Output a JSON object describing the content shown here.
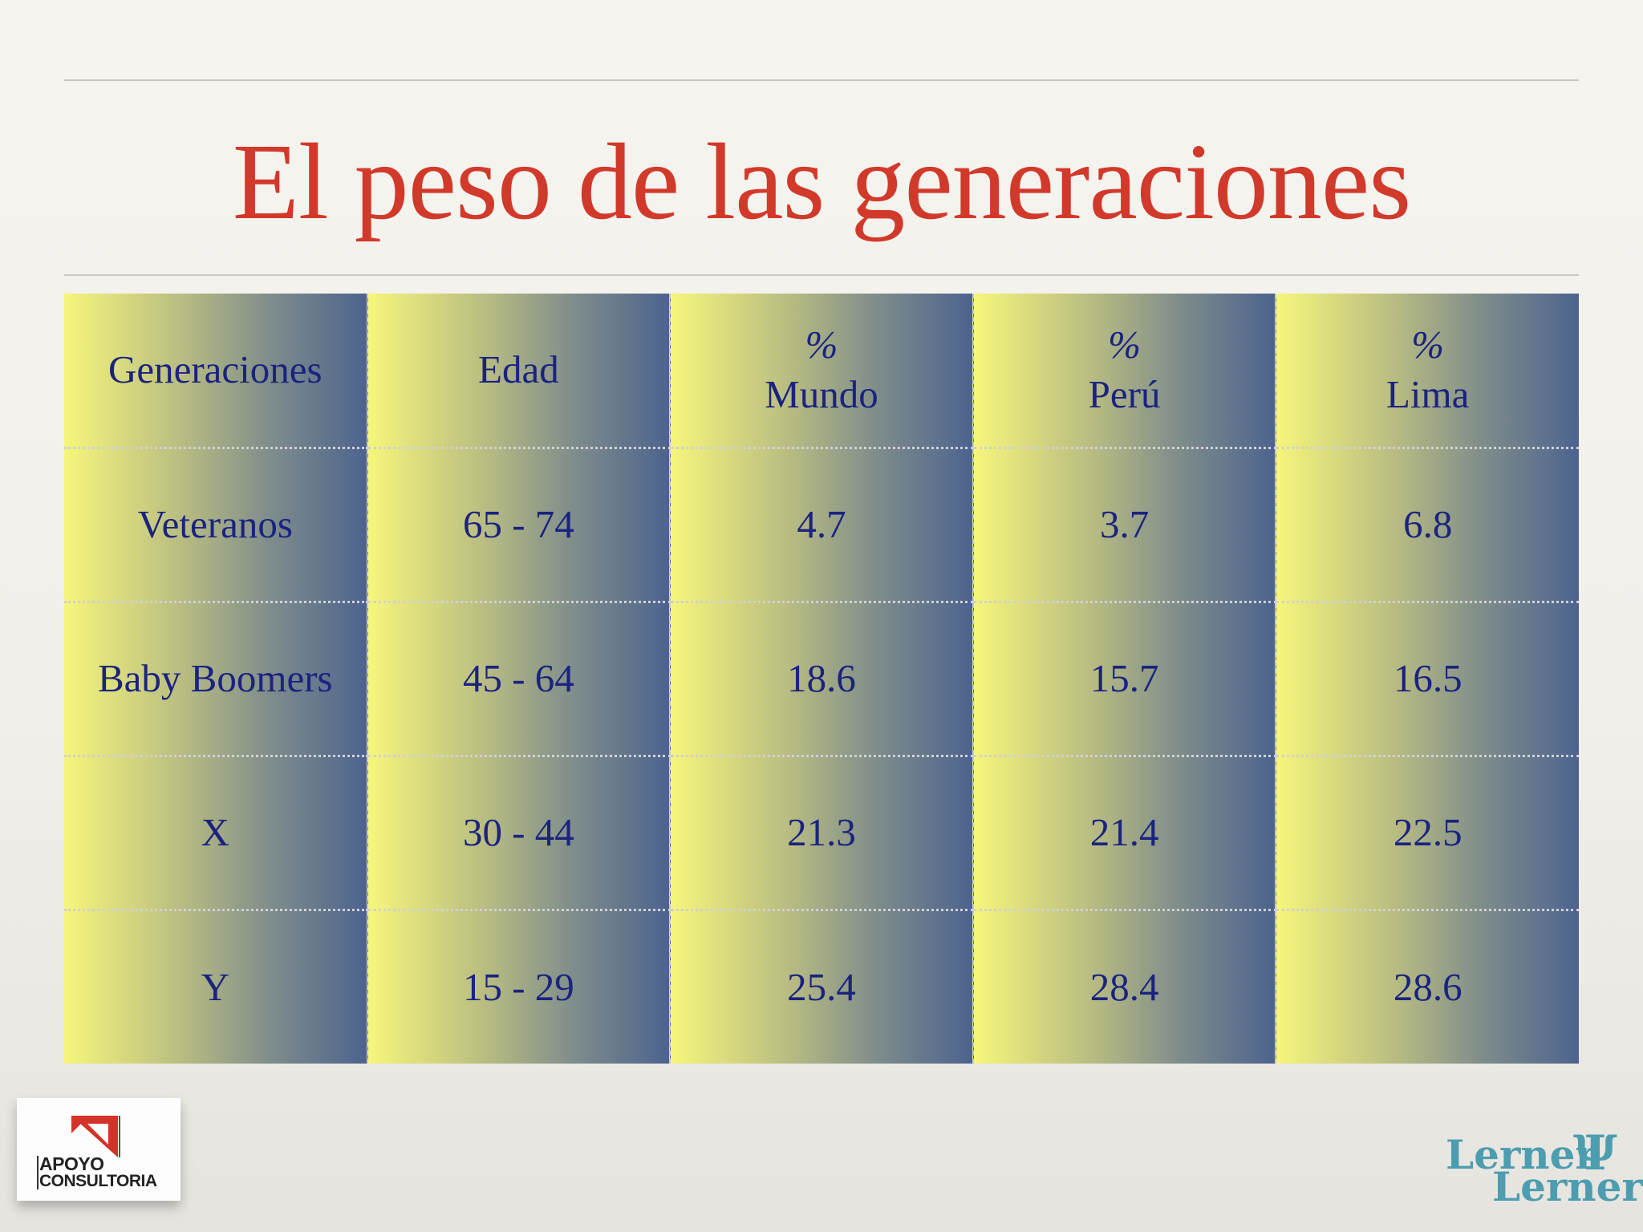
{
  "title": "El peso de las generaciones",
  "table": {
    "headers": [
      {
        "symbol": "",
        "label": "Generaciones"
      },
      {
        "symbol": "",
        "label": "Edad"
      },
      {
        "symbol": "%",
        "label": "Mundo"
      },
      {
        "symbol": "%",
        "label": "Perú"
      },
      {
        "symbol": "%",
        "label": "Lima"
      }
    ],
    "rows": [
      [
        "Veteranos",
        "65 - 74",
        "4.7",
        "3.7",
        "6.8"
      ],
      [
        "Baby Boomers",
        "45 - 64",
        "18.6",
        "15.7",
        "16.5"
      ],
      [
        "X",
        "30 - 44",
        "21.3",
        "21.4",
        "22.5"
      ],
      [
        "Y",
        "15 - 29",
        "25.4",
        "28.4",
        "28.6"
      ]
    ]
  },
  "logos": {
    "apoyo": {
      "line1": "APOYO",
      "line2": "CONSULTORIA",
      "color": "#d3342a"
    },
    "lerner": {
      "line1": "Lerner",
      "line2": "Lerner",
      "symbol": "Ψ",
      "color": "#4d9db0"
    }
  },
  "colors": {
    "title": "#d13a2b",
    "table_text": "#1b237f",
    "gradient_start": "#f6f67b",
    "gradient_end": "#4d638e"
  }
}
